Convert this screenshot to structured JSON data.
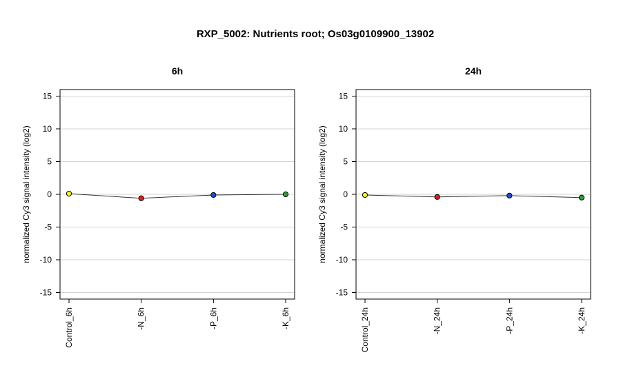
{
  "title": "RXP_5002: Nutrients root; Os03g0109900_13902",
  "chart_data": [
    {
      "type": "line",
      "title": "6h",
      "ylabel": "normalized Cy3 signal intensity (log2)",
      "ylim": [
        -16,
        16
      ],
      "yticks": [
        -15,
        -10,
        -5,
        0,
        5,
        10,
        15
      ],
      "grid": true,
      "categories": [
        "Control_6h",
        "-N_6h",
        "-P_6h",
        "-K_6h"
      ],
      "values": [
        0.1,
        -0.6,
        -0.1,
        0.0
      ],
      "point_colors": [
        "#ffff00",
        "#e41a1c",
        "#1f4fd8",
        "#2ca02c"
      ]
    },
    {
      "type": "line",
      "title": "24h",
      "ylabel": "normalized Cy3 signal intensity (log2)",
      "ylim": [
        -16,
        16
      ],
      "yticks": [
        -15,
        -10,
        -5,
        0,
        5,
        10,
        15
      ],
      "grid": true,
      "categories": [
        "Control_24h",
        "-N_24h",
        "-P_24h",
        "-K_24h"
      ],
      "values": [
        -0.1,
        -0.4,
        -0.2,
        -0.5
      ],
      "point_colors": [
        "#ffff00",
        "#e41a1c",
        "#1f4fd8",
        "#2ca02c"
      ]
    }
  ]
}
